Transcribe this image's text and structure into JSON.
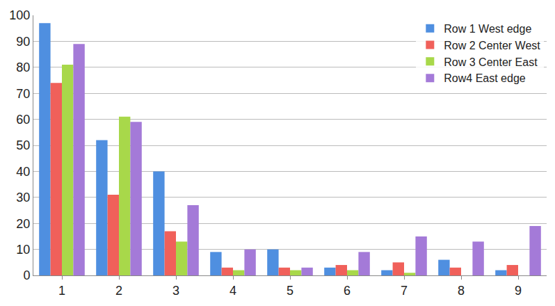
{
  "chart_data": {
    "type": "bar",
    "categories": [
      "1",
      "2",
      "3",
      "4",
      "5",
      "6",
      "7",
      "8",
      "9"
    ],
    "series": [
      {
        "name": "Row 1 West edge",
        "color": "#4f8fe0",
        "values": [
          97,
          52,
          40,
          9,
          10,
          3,
          2,
          6,
          2
        ]
      },
      {
        "name": "Row 2 Center West",
        "color": "#f0605a",
        "values": [
          74,
          31,
          17,
          3,
          3,
          4,
          5,
          3,
          4
        ]
      },
      {
        "name": "Row 3 Center East",
        "color": "#a8d84a",
        "values": [
          81,
          61,
          13,
          2,
          2,
          2,
          1,
          0,
          0
        ]
      },
      {
        "name": "Row4 East edge",
        "color": "#a47ad8",
        "values": [
          89,
          59,
          27,
          10,
          3,
          9,
          15,
          13,
          19
        ]
      }
    ],
    "ylim": [
      0,
      100
    ],
    "yticks": [
      0,
      10,
      20,
      30,
      40,
      50,
      60,
      70,
      80,
      90,
      100
    ],
    "grid": true,
    "legend": "top-right"
  }
}
